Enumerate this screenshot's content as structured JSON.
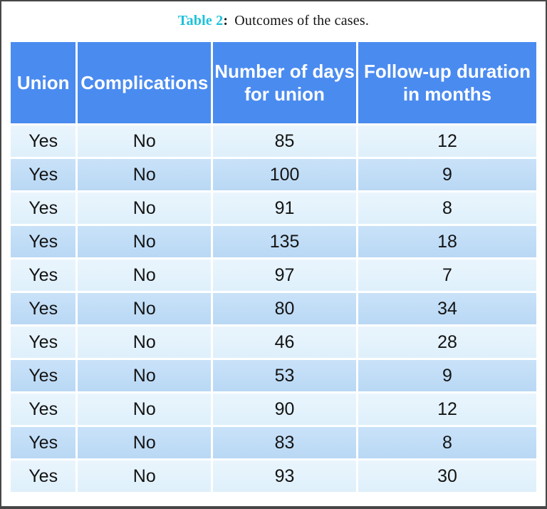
{
  "caption": {
    "label": "Table 2",
    "separator": ":",
    "text": "Outcomes of the cases."
  },
  "table": {
    "columns": [
      "Union",
      "Complications",
      "Number of days for union",
      "Follow-up duration in months"
    ],
    "rows": [
      {
        "union": "Yes",
        "complications": "No",
        "days_for_union": "85",
        "followup_months": "12"
      },
      {
        "union": "Yes",
        "complications": "No",
        "days_for_union": "100",
        "followup_months": "9"
      },
      {
        "union": "Yes",
        "complications": "No",
        "days_for_union": "91",
        "followup_months": "8"
      },
      {
        "union": "Yes",
        "complications": "No",
        "days_for_union": "135",
        "followup_months": "18"
      },
      {
        "union": "Yes",
        "complications": "No",
        "days_for_union": "97",
        "followup_months": "7"
      },
      {
        "union": "Yes",
        "complications": "No",
        "days_for_union": "80",
        "followup_months": "34"
      },
      {
        "union": "Yes",
        "complications": "No",
        "days_for_union": "46",
        "followup_months": "28"
      },
      {
        "union": "Yes",
        "complications": "No",
        "days_for_union": "53",
        "followup_months": "9"
      },
      {
        "union": "Yes",
        "complications": "No",
        "days_for_union": "90",
        "followup_months": "12"
      },
      {
        "union": "Yes",
        "complications": "No",
        "days_for_union": "83",
        "followup_months": "8"
      },
      {
        "union": "Yes",
        "complications": "No",
        "days_for_union": "93",
        "followup_months": "30"
      }
    ]
  },
  "colors": {
    "accent": "#1cc2da",
    "header_bg": "#4a8bf0",
    "row_dark_top": "#c9e2f9",
    "row_dark_bottom": "#b9d8f4",
    "row_light_top": "#eaf5fd",
    "row_light_bottom": "#def0fb"
  }
}
